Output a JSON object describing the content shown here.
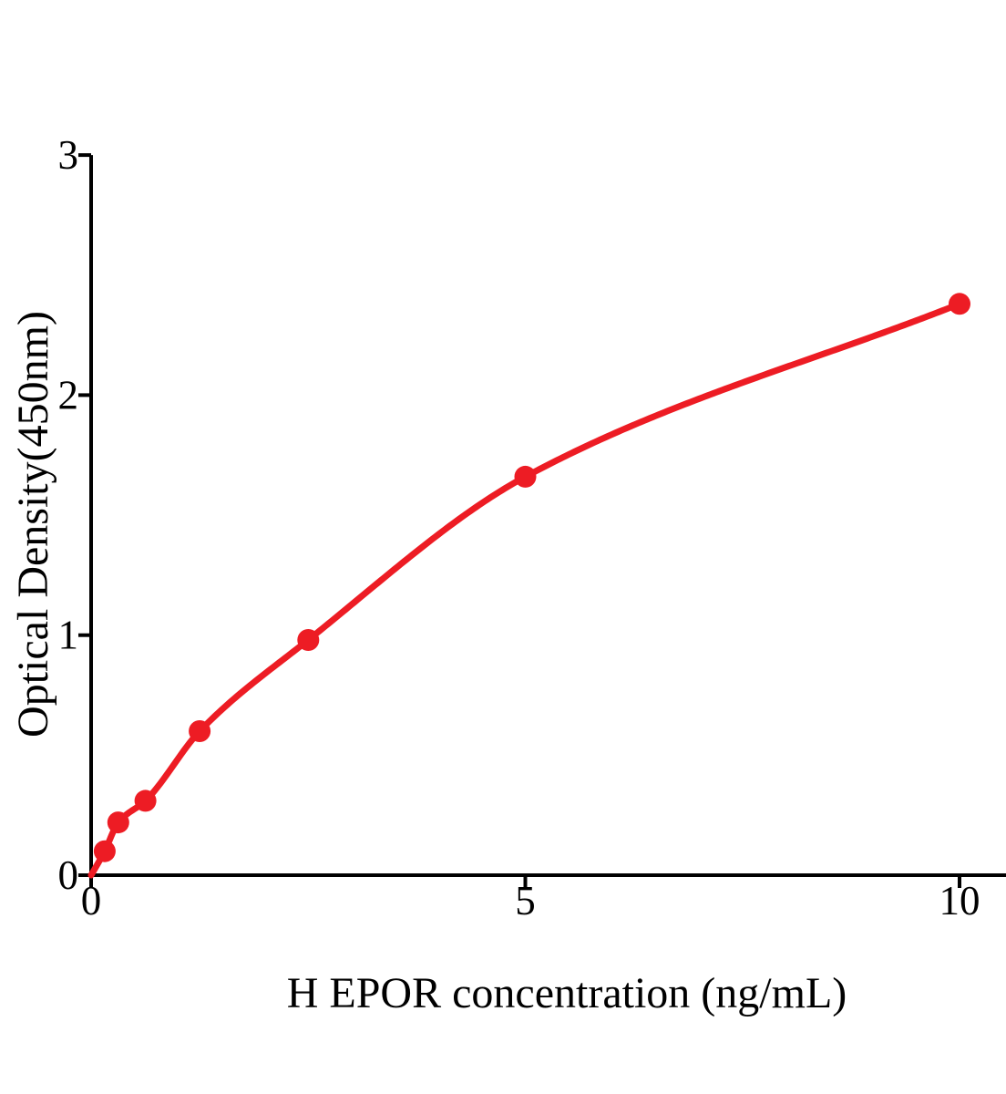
{
  "chart_data": {
    "type": "scatter",
    "title": "",
    "xlabel": "H EPOR concentration (ng/mL)",
    "ylabel": "Optical Density(450nm)",
    "x": [
      0.156,
      0.3125,
      0.625,
      1.25,
      2.5,
      5,
      10
    ],
    "y": [
      0.1,
      0.22,
      0.31,
      0.6,
      0.98,
      1.66,
      2.38
    ],
    "curve_start": {
      "x": 0,
      "y": 0
    },
    "x_ticks": [
      0,
      5,
      10
    ],
    "x_tick_labels": [
      "0",
      "5",
      "10"
    ],
    "y_ticks": [
      0,
      1,
      2,
      3
    ],
    "y_tick_labels": [
      "0",
      "1",
      "2",
      "3"
    ],
    "xlim": [
      0,
      10.5
    ],
    "ylim": [
      0,
      3
    ],
    "grid": false,
    "legend": false,
    "point_color": "#ed1c24",
    "line_color": "#ed1c24",
    "axis_color": "#000000",
    "background_color": "#ffffff"
  }
}
